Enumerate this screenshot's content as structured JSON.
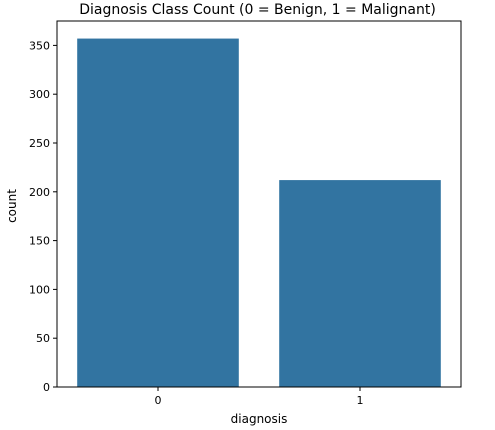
{
  "chart_data": {
    "type": "bar",
    "title": "Diagnosis Class Count (0 = Benign, 1 = Malignant)",
    "xlabel": "diagnosis",
    "ylabel": "count",
    "categories": [
      "0",
      "1"
    ],
    "values": [
      357,
      212
    ],
    "ylim": [
      0,
      375
    ],
    "yticks": [
      0,
      50,
      100,
      150,
      200,
      250,
      300,
      350
    ],
    "grid": false,
    "legend": "none",
    "colors": {
      "bar": "#3274a1",
      "axis": "#000000",
      "background": "#ffffff"
    }
  }
}
